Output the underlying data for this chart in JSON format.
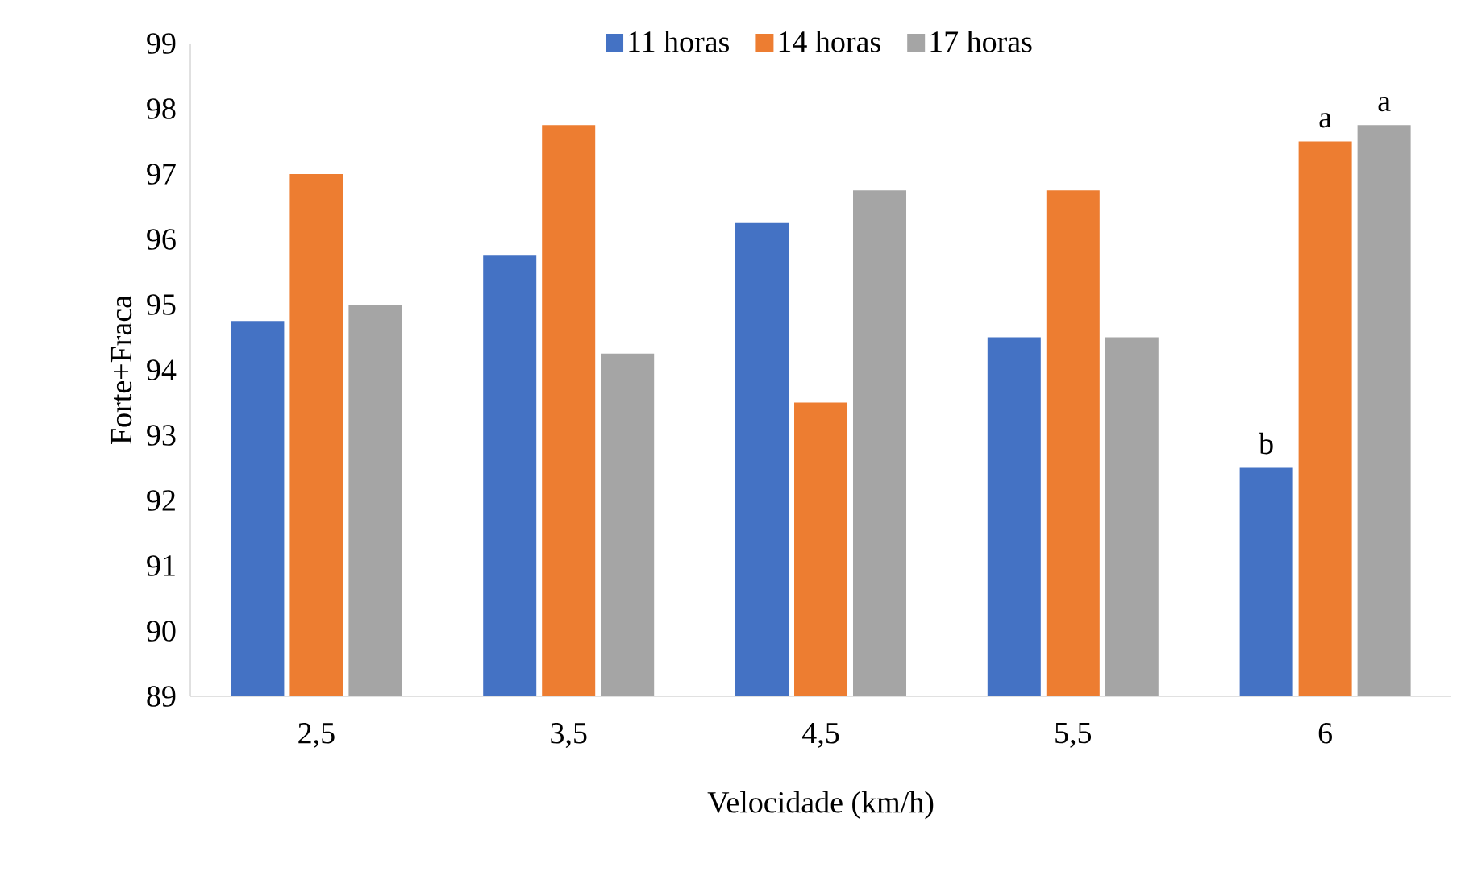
{
  "chart_data": {
    "type": "bar",
    "xlabel": "Velocidade (km/h)",
    "ylabel": "Forte+Fraca",
    "categories": [
      "2,5",
      "3,5",
      "4,5",
      "5,5",
      "6"
    ],
    "series": [
      {
        "name": "11 horas",
        "color": "#4472c4",
        "values": [
          94.75,
          95.75,
          96.25,
          94.5,
          92.5
        ]
      },
      {
        "name": "14 horas",
        "color": "#ed7d31",
        "values": [
          97.0,
          97.75,
          93.5,
          96.75,
          97.5
        ]
      },
      {
        "name": "17 horas",
        "color": "#a5a5a5",
        "values": [
          95.0,
          94.25,
          96.75,
          94.5,
          97.75
        ]
      }
    ],
    "ylim": [
      89,
      99
    ],
    "yticks": [
      89,
      90,
      91,
      92,
      93,
      94,
      95,
      96,
      97,
      98,
      99
    ],
    "grid": false,
    "legend": "top",
    "annotations": [
      "b",
      "a",
      "a"
    ]
  }
}
